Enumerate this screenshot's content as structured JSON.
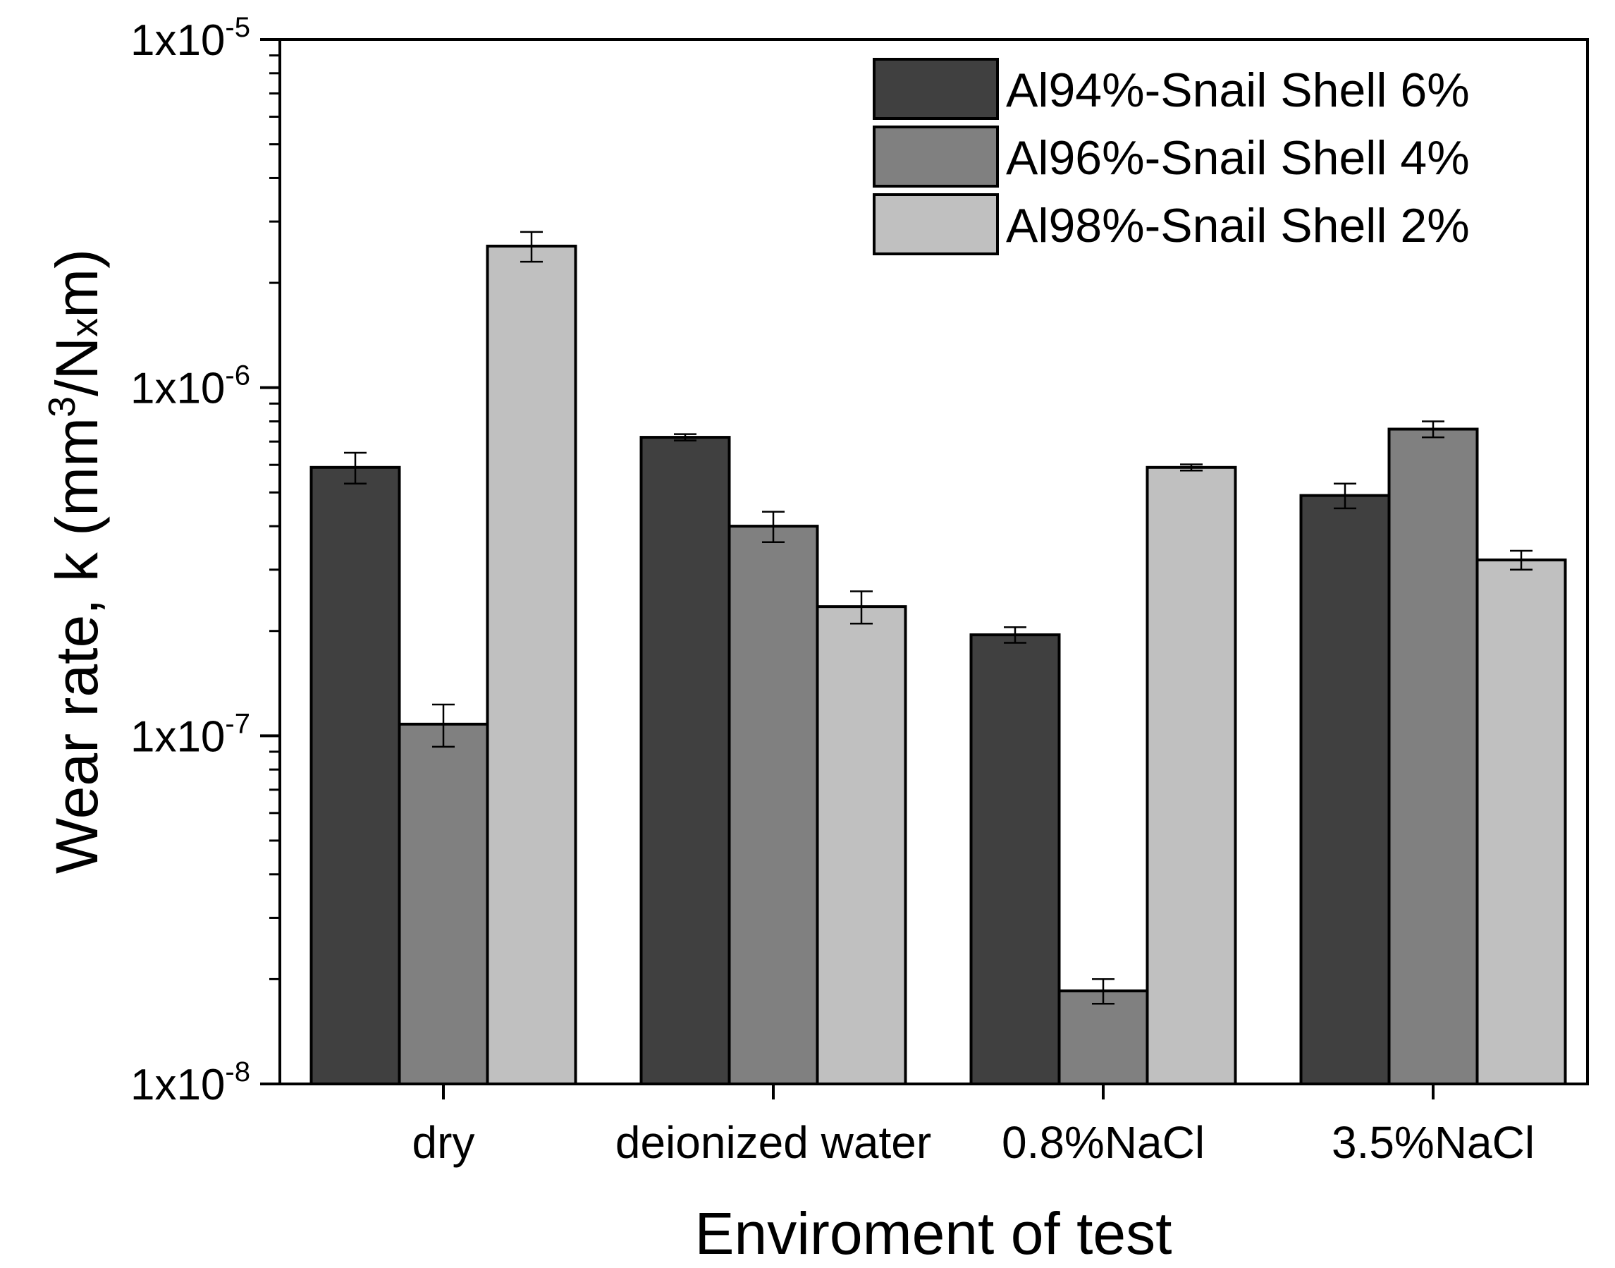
{
  "chart_data": {
    "type": "bar",
    "scale": "log",
    "xlabel": "Enviroment of test",
    "ylabel": {
      "main": "Wear rate, k (mm",
      "sup": "3",
      "mid": "/N",
      "small": "x",
      "end": "m)"
    },
    "ylim": [
      1e-08,
      1e-05
    ],
    "yticks": [
      {
        "base": "1x10",
        "exp": "-8",
        "value": 1e-08
      },
      {
        "base": "1x10",
        "exp": "-7",
        "value": 1e-07
      },
      {
        "base": "1x10",
        "exp": "-6",
        "value": 1e-06
      },
      {
        "base": "1x10",
        "exp": "-5",
        "value": 1e-05
      }
    ],
    "categories": [
      "dry",
      "deionized water",
      "0.8%NaCl",
      "3.5%NaCl"
    ],
    "series": [
      {
        "name": "Al94%-Snail Shell 6%",
        "color": "#404040",
        "values": [
          5.9e-07,
          7.2e-07,
          1.95e-07,
          4.9e-07
        ],
        "errors": [
          6e-08,
          1.5e-08,
          1e-08,
          4e-08
        ]
      },
      {
        "name": "Al96%-Snail Shell 4%",
        "color": "#808080",
        "values": [
          1.08e-07,
          4e-07,
          1.85e-08,
          7.6e-07
        ],
        "errors": [
          1.5e-08,
          4e-08,
          1.5e-09,
          4e-08
        ]
      },
      {
        "name": "Al98%-Snail Shell 2%",
        "color": "#c0c0c0",
        "values": [
          2.55e-06,
          2.35e-07,
          5.9e-07,
          3.2e-07
        ],
        "errors": [
          2.5e-07,
          2.5e-08,
          1.2e-08,
          2e-08
        ]
      }
    ],
    "legend_position": "top-right",
    "grid": false
  }
}
